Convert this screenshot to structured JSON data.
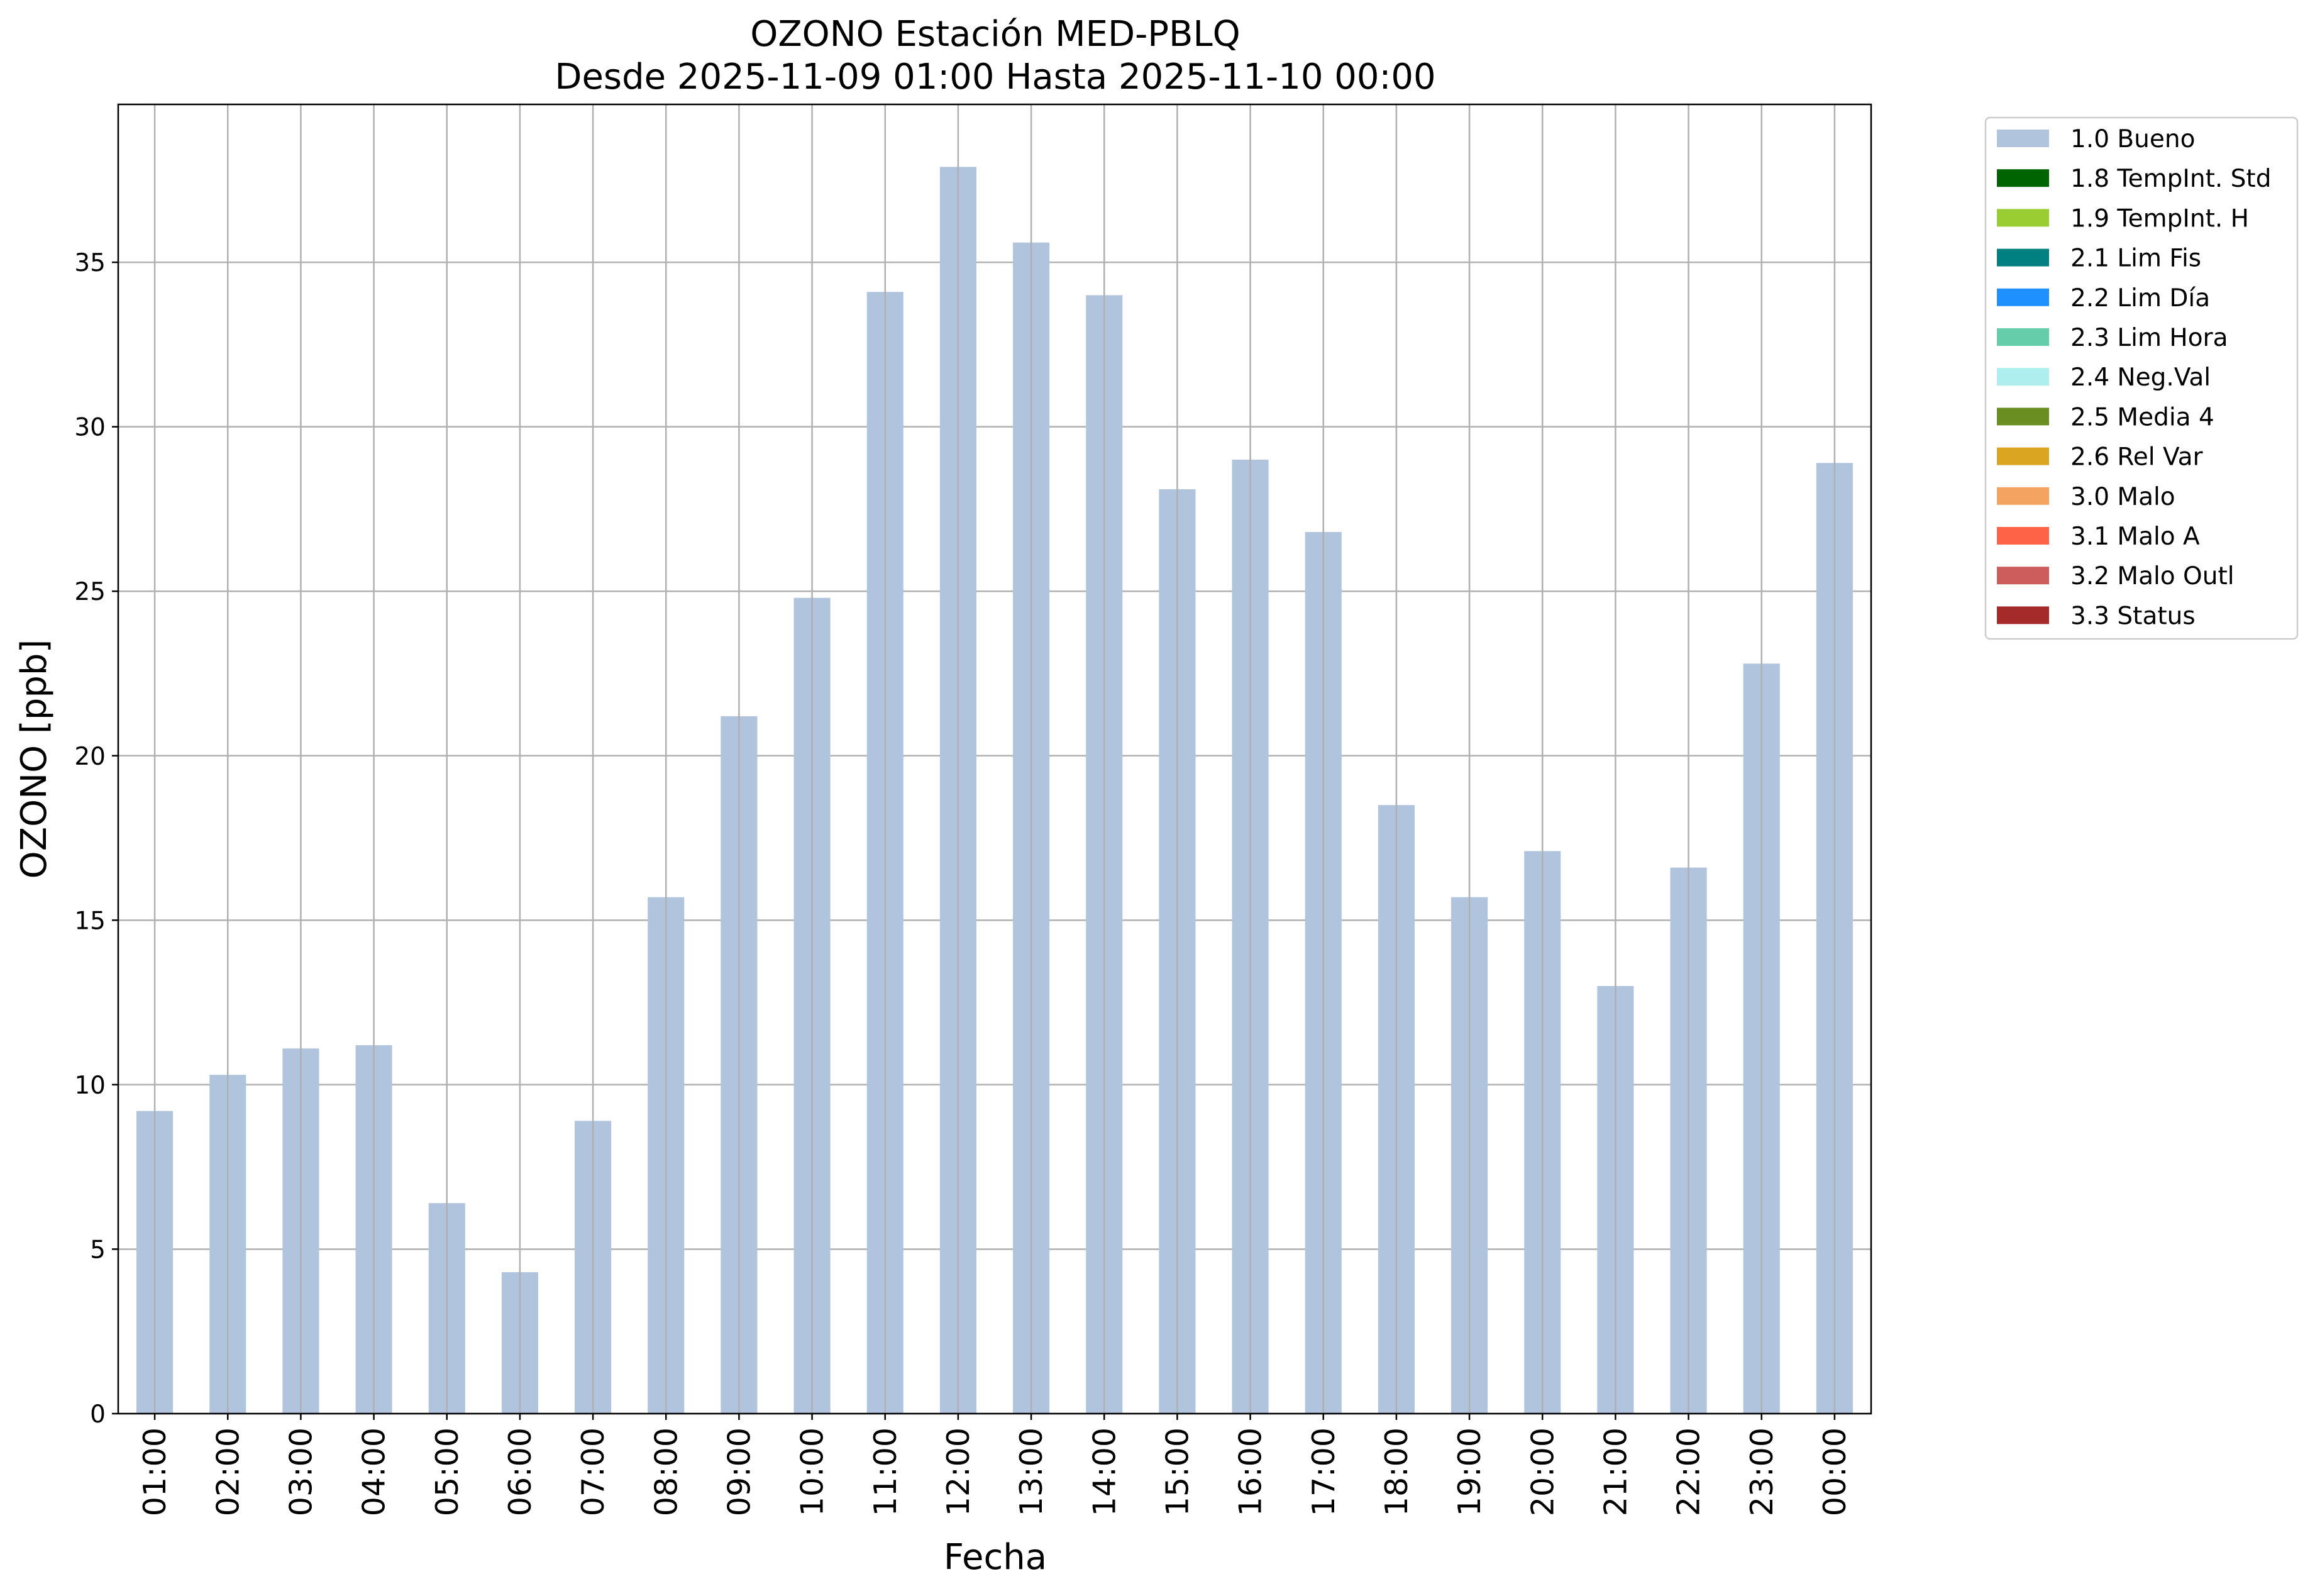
{
  "chart_data": {
    "type": "bar",
    "title": "OZONO Estación MED-PBLQ",
    "subtitle": "Desde 2025-11-09 01:00 Hasta 2025-11-10 00:00",
    "xlabel": "Fecha",
    "ylabel": "OZONO [ppb]",
    "ylim": [
      0,
      39.8
    ],
    "yticks": [
      0,
      5,
      10,
      15,
      20,
      25,
      30,
      35
    ],
    "grid": true,
    "legend_position": "outside-top-right",
    "categories": [
      "01:00",
      "02:00",
      "03:00",
      "04:00",
      "05:00",
      "06:00",
      "07:00",
      "08:00",
      "09:00",
      "10:00",
      "11:00",
      "12:00",
      "13:00",
      "14:00",
      "15:00",
      "16:00",
      "17:00",
      "18:00",
      "19:00",
      "20:00",
      "21:00",
      "22:00",
      "23:00",
      "00:00"
    ],
    "series": [
      {
        "name": "1.0 Bueno",
        "color": "#b0c4de",
        "values": [
          9.2,
          10.3,
          11.1,
          11.2,
          6.4,
          4.3,
          8.9,
          15.7,
          21.2,
          24.8,
          34.1,
          37.9,
          35.6,
          34.0,
          28.1,
          29.0,
          26.8,
          18.5,
          15.7,
          17.1,
          13.0,
          16.6,
          22.8,
          28.9
        ]
      }
    ],
    "legend": [
      {
        "label": "1.0 Bueno",
        "color": "#b0c4de"
      },
      {
        "label": "1.8 TempInt. Std",
        "color": "#006400"
      },
      {
        "label": "1.9 TempInt. H",
        "color": "#9acd32"
      },
      {
        "label": "2.1 Lim Fis",
        "color": "#008080"
      },
      {
        "label": "2.2 Lim Día",
        "color": "#1e90ff"
      },
      {
        "label": "2.3 Lim Hora",
        "color": "#66cdaa"
      },
      {
        "label": "2.4 Neg.Val",
        "color": "#afeeee"
      },
      {
        "label": "2.5 Media 4",
        "color": "#6b8e23"
      },
      {
        "label": "2.6 Rel Var",
        "color": "#daa520"
      },
      {
        "label": "3.0 Malo",
        "color": "#f4a460"
      },
      {
        "label": "3.1 Malo A",
        "color": "#ff6347"
      },
      {
        "label": "3.2 Malo Outl",
        "color": "#cd5c5c"
      },
      {
        "label": "3.3 Status",
        "color": "#a52a2a"
      }
    ]
  }
}
